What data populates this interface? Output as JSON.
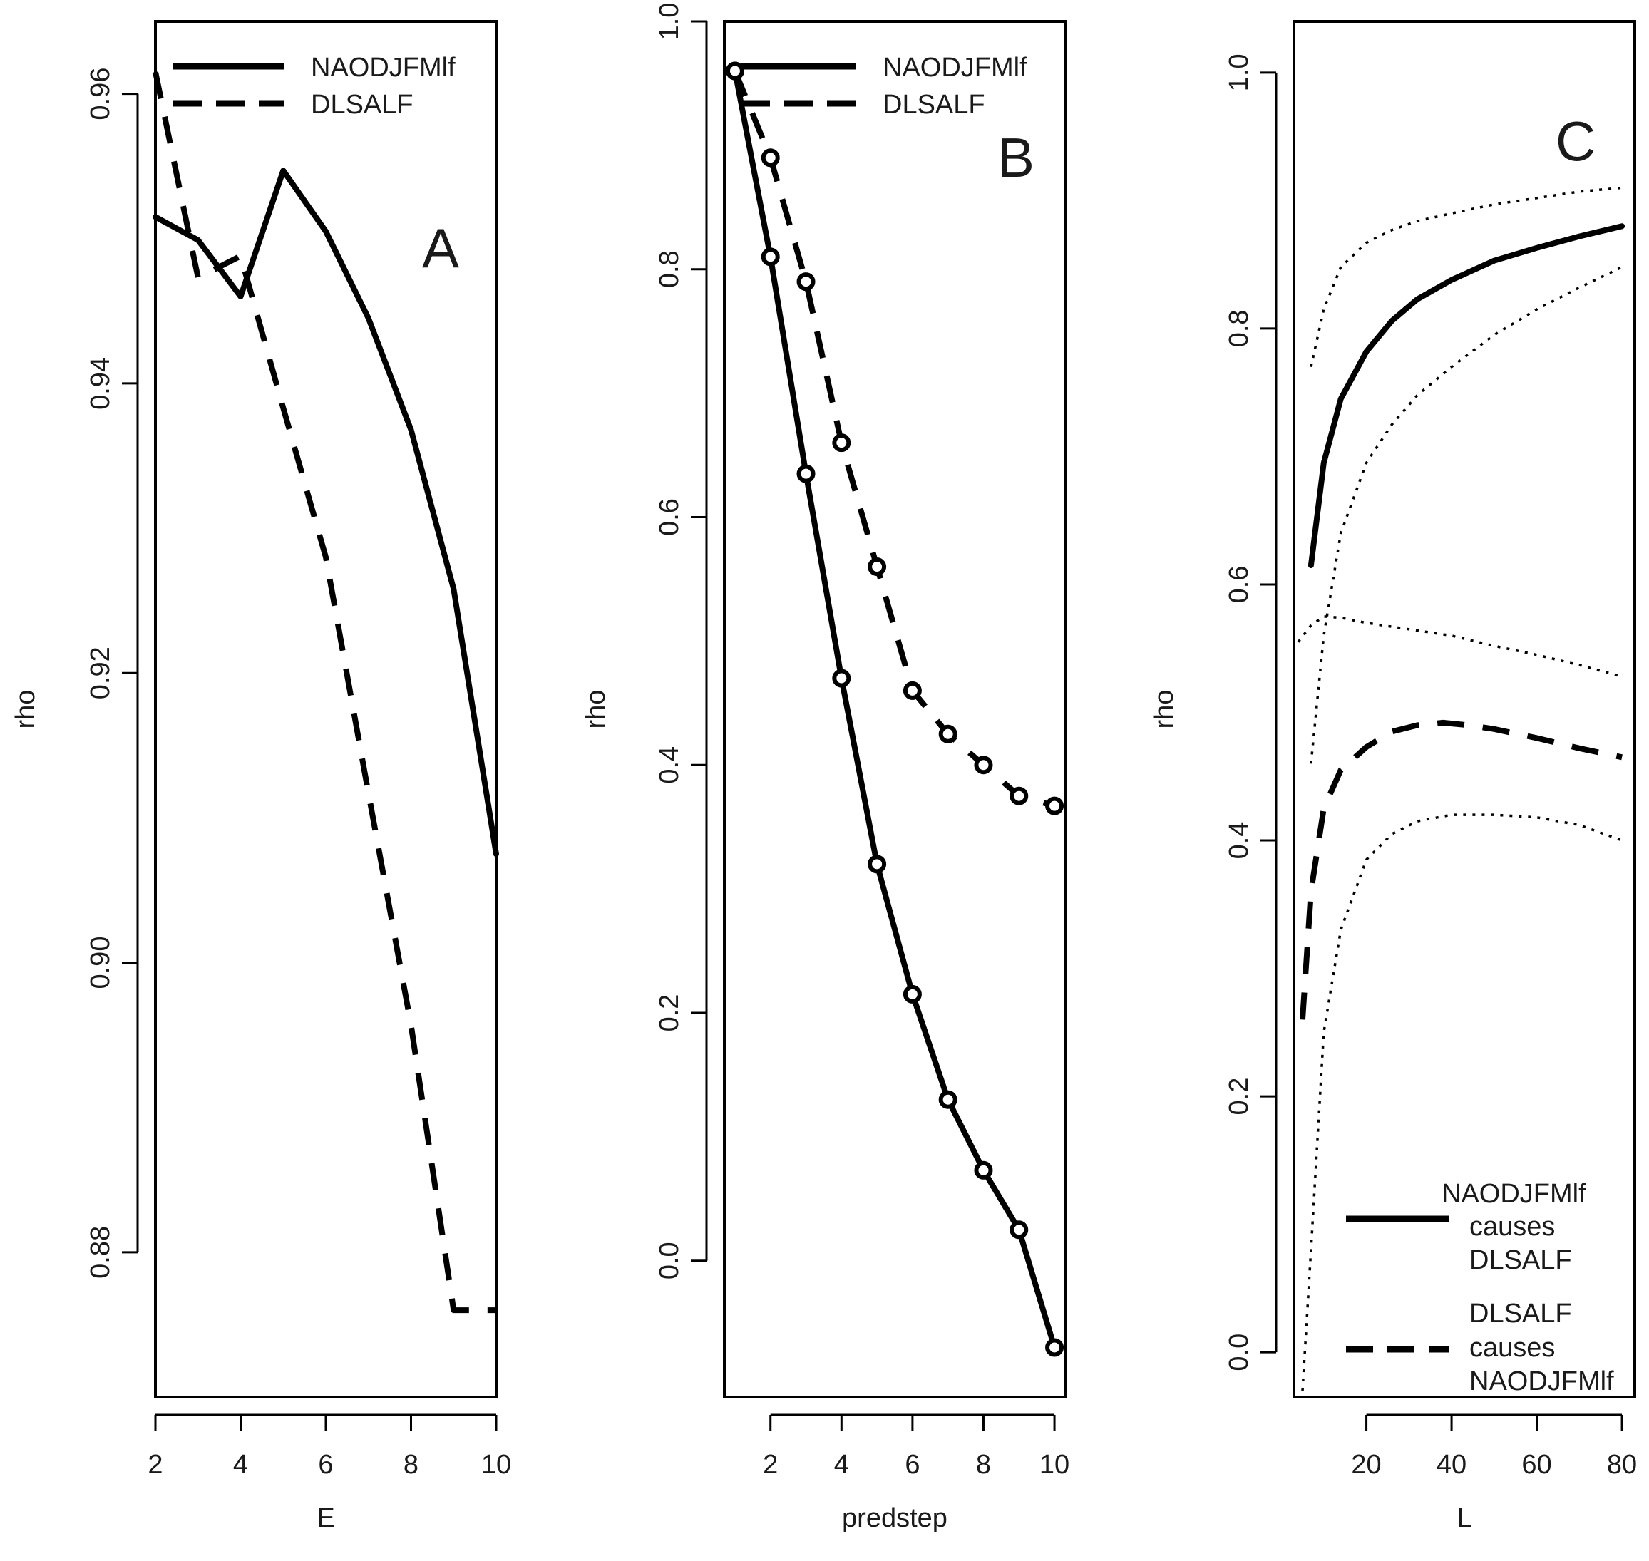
{
  "chart_data": [
    {
      "type": "line",
      "panel_letter": "A",
      "xlabel": "E",
      "ylabel": "rho",
      "xlim": [
        2,
        10
      ],
      "ylim": [
        0.87,
        0.965
      ],
      "xticks": [
        "2",
        "4",
        "6",
        "8",
        "10"
      ],
      "yticks": [
        "0.88",
        "0.90",
        "0.92",
        "0.94",
        "0.96"
      ],
      "legend_position": "top-left",
      "series": [
        {
          "name": "NAODJFMlf",
          "style": "solid",
          "x": [
            2,
            3,
            4,
            5,
            6,
            7,
            8,
            9,
            10
          ],
          "y": [
            0.9515,
            0.9499,
            0.946,
            0.9547,
            0.9505,
            0.9445,
            0.9368,
            0.9258,
            0.9075
          ]
        },
        {
          "name": "DLSALF",
          "style": "dashed",
          "x": [
            2,
            3,
            4,
            5,
            6,
            7,
            8,
            9,
            10
          ],
          "y": [
            0.9615,
            0.9473,
            0.9488,
            0.9383,
            0.928,
            0.9117,
            0.8957,
            0.876,
            0.876
          ]
        }
      ]
    },
    {
      "type": "line",
      "panel_letter": "B",
      "xlabel": "predstep",
      "ylabel": "rho",
      "xlim": [
        0.7,
        10.3
      ],
      "ylim": [
        -0.11,
        1.0
      ],
      "xticks": [
        "2",
        "4",
        "6",
        "8",
        "10"
      ],
      "yticks": [
        "0.0",
        "0.2",
        "0.4",
        "0.6",
        "0.8",
        "1.0"
      ],
      "legend_position": "top-left",
      "series": [
        {
          "name": "NAODJFMlf",
          "style": "solid",
          "markers": "circle",
          "x": [
            1,
            2,
            3,
            4,
            5,
            6,
            7,
            8,
            9,
            10
          ],
          "y": [
            0.96,
            0.81,
            0.635,
            0.47,
            0.32,
            0.215,
            0.13,
            0.073,
            0.025,
            -0.07
          ]
        },
        {
          "name": "DLSALF",
          "style": "dashed",
          "markers": "circle",
          "x": [
            1,
            2,
            3,
            4,
            5,
            6,
            7,
            8,
            9,
            10
          ],
          "y": [
            0.96,
            0.89,
            0.79,
            0.66,
            0.56,
            0.46,
            0.425,
            0.4,
            0.375,
            0.367
          ]
        }
      ]
    },
    {
      "type": "line",
      "panel_letter": "C",
      "xlabel": "L",
      "ylabel": "rho",
      "xlim": [
        3,
        83
      ],
      "ylim": [
        -0.035,
        1.04
      ],
      "xticks": [
        "20",
        "40",
        "60",
        "80"
      ],
      "yticks": [
        "0.0",
        "0.2",
        "0.4",
        "0.6",
        "0.8",
        "1.0"
      ],
      "legend_position": "bottom-right",
      "series": [
        {
          "name": "NAODJFMlf causes DLSALF",
          "style": "solid",
          "x": [
            7,
            10,
            14,
            20,
            26,
            32,
            40,
            50,
            60,
            70,
            80
          ],
          "y": [
            0.615,
            0.695,
            0.745,
            0.782,
            0.806,
            0.823,
            0.838,
            0.853,
            0.863,
            0.872,
            0.88
          ]
        },
        {
          "name": "upper bound (NAODJFMlf causes DLSALF)",
          "style": "dotted",
          "x": [
            7,
            10,
            14,
            20,
            26,
            32,
            40,
            50,
            60,
            70,
            80
          ],
          "y": [
            0.77,
            0.815,
            0.848,
            0.867,
            0.877,
            0.884,
            0.89,
            0.897,
            0.902,
            0.907,
            0.91
          ]
        },
        {
          "name": "lower bound (NAODJFMlf causes DLSALF)",
          "style": "dotted",
          "x": [
            7,
            10,
            14,
            20,
            26,
            32,
            40,
            50,
            60,
            70,
            80
          ],
          "y": [
            0.46,
            0.56,
            0.64,
            0.695,
            0.725,
            0.748,
            0.77,
            0.795,
            0.815,
            0.832,
            0.848
          ]
        },
        {
          "name": "DLSALF causes NAODJFMlf",
          "style": "dashed",
          "x": [
            5,
            7,
            10,
            14,
            20,
            26,
            32,
            38,
            44,
            50,
            60,
            70,
            80
          ],
          "y": [
            0.26,
            0.36,
            0.425,
            0.455,
            0.473,
            0.485,
            0.49,
            0.492,
            0.49,
            0.487,
            0.48,
            0.472,
            0.465
          ]
        },
        {
          "name": "upper bound (DLSALF causes NAODJFMlf)",
          "style": "dotted",
          "x": [
            4,
            7,
            10,
            14,
            20,
            30,
            40,
            50,
            60,
            70,
            80
          ],
          "y": [
            0.555,
            0.568,
            0.575,
            0.574,
            0.57,
            0.565,
            0.56,
            0.552,
            0.545,
            0.537,
            0.528
          ]
        },
        {
          "name": "lower bound (DLSALF causes NAODJFMlf)",
          "style": "dotted",
          "x": [
            5,
            7,
            10,
            14,
            20,
            26,
            32,
            40,
            50,
            60,
            70,
            80
          ],
          "y": [
            -0.03,
            0.08,
            0.25,
            0.33,
            0.385,
            0.405,
            0.415,
            0.42,
            0.42,
            0.418,
            0.412,
            0.4
          ]
        }
      ],
      "legend_entries": [
        {
          "style": "solid",
          "lines": [
            "NAODJFMlf",
            "causes",
            "DLSALF"
          ]
        },
        {
          "style": "dashed",
          "lines": [
            "DLSALF",
            "causes",
            "NAODJFMlf"
          ]
        }
      ]
    }
  ]
}
